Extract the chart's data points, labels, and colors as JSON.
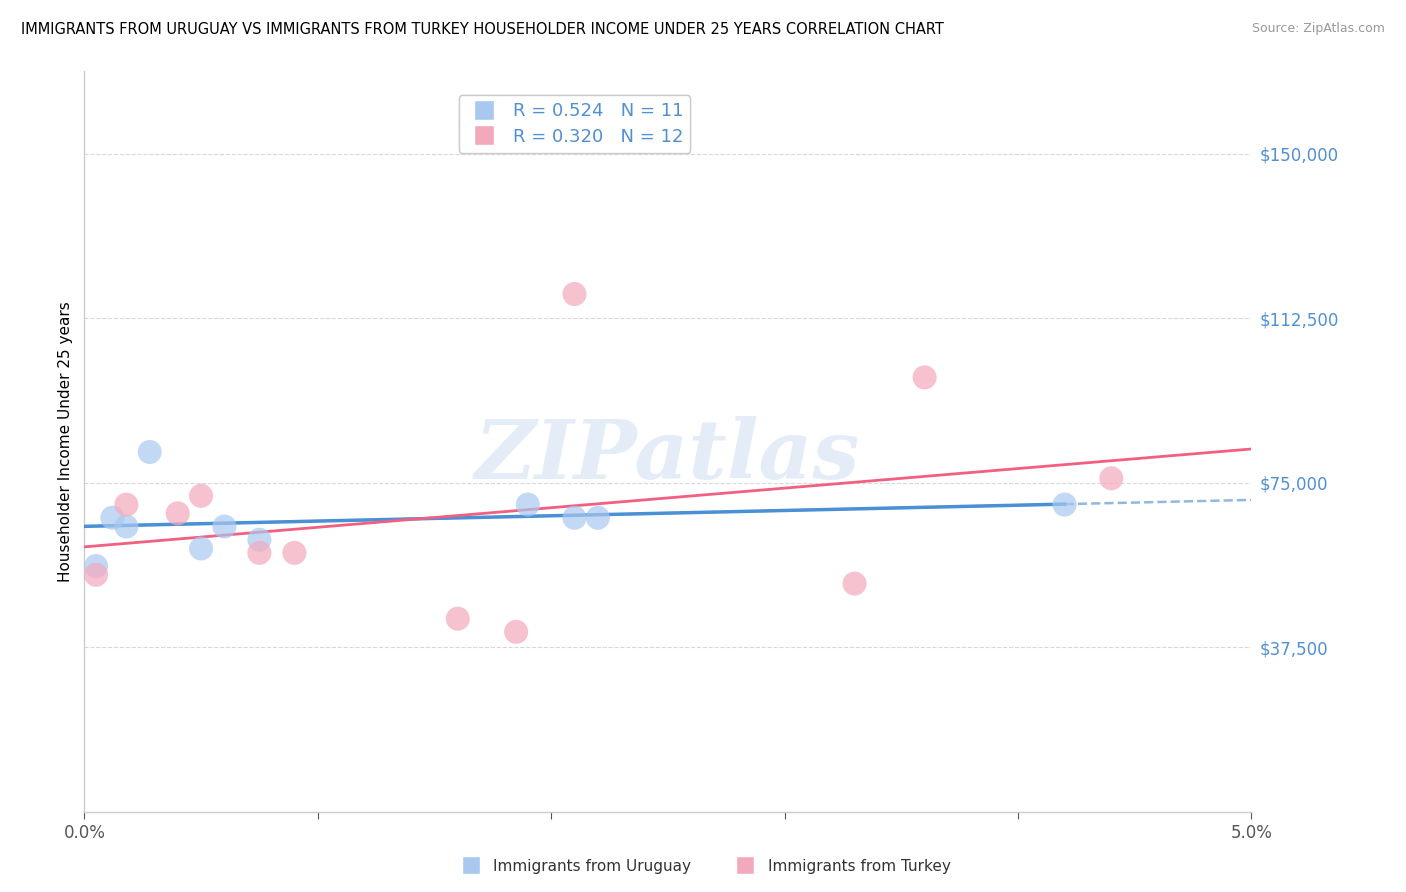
{
  "title": "IMMIGRANTS FROM URUGUAY VS IMMIGRANTS FROM TURKEY HOUSEHOLDER INCOME UNDER 25 YEARS CORRELATION CHART",
  "source": "Source: ZipAtlas.com",
  "ylabel": "Householder Income Under 25 years",
  "xlim": [
    0.0,
    0.05
  ],
  "ylim": [
    0,
    168750
  ],
  "yticks": [
    37500,
    75000,
    112500,
    150000
  ],
  "ytick_labels": [
    "$37,500",
    "$75,000",
    "$112,500",
    "$150,000"
  ],
  "watermark": "ZIPatlas",
  "uruguay_R": 0.524,
  "uruguay_N": 11,
  "turkey_R": 0.32,
  "turkey_N": 12,
  "uruguay_color": "#A8C8F0",
  "turkey_color": "#F4A8BC",
  "uruguay_line_color": "#4A90D4",
  "turkey_line_color": "#F06080",
  "dash_line_color": "#90B8E0",
  "uruguay_x": [
    0.0005,
    0.0012,
    0.0018,
    0.0028,
    0.005,
    0.006,
    0.0075,
    0.019,
    0.021,
    0.022,
    0.042
  ],
  "uruguay_y": [
    56000,
    67000,
    65000,
    82000,
    60000,
    65000,
    62000,
    70000,
    67000,
    67000,
    70000
  ],
  "turkey_x": [
    0.0005,
    0.0018,
    0.004,
    0.005,
    0.0075,
    0.009,
    0.016,
    0.0185,
    0.021,
    0.033,
    0.036,
    0.044
  ],
  "turkey_y": [
    54000,
    70000,
    68000,
    72000,
    59000,
    59000,
    44000,
    41000,
    118000,
    52000,
    99000,
    76000
  ],
  "background_color": "#FFFFFF",
  "grid_color": "#D8D8D8",
  "axis_color": "#CCCCCC"
}
